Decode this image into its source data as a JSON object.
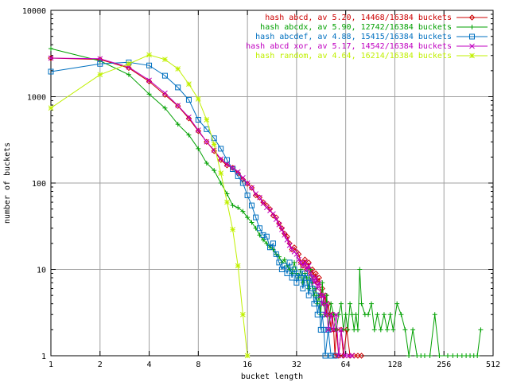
{
  "chart_data": {
    "type": "line",
    "xscale": "log2",
    "yscale": "log10",
    "xlim": [
      1,
      512
    ],
    "ylim": [
      1,
      10000
    ],
    "xticks": [
      "1",
      "2",
      "4",
      "8",
      "16",
      "32",
      "64",
      "128",
      "256",
      "512"
    ],
    "yticks": [
      "1",
      "10",
      "100",
      "1000",
      "10000"
    ],
    "xlabel": "bucket length",
    "ylabel": "number of buckets",
    "grid": true,
    "legend_position": "top-right",
    "series": [
      {
        "name": "hash abcd, av 5.20, 14468/16384 buckets",
        "color": "#cc0000",
        "marker": "diamond",
        "points": [
          [
            1,
            2800
          ],
          [
            2,
            2700
          ],
          [
            3,
            2150
          ],
          [
            4,
            1500
          ],
          [
            5,
            1050
          ],
          [
            6,
            780
          ],
          [
            7,
            560
          ],
          [
            8,
            400
          ],
          [
            9,
            300
          ],
          [
            10,
            235
          ],
          [
            11,
            185
          ],
          [
            12,
            160
          ],
          [
            13,
            150
          ],
          [
            14,
            130
          ],
          [
            15,
            110
          ],
          [
            16,
            98
          ],
          [
            17,
            88
          ],
          [
            18,
            72
          ],
          [
            19,
            68
          ],
          [
            20,
            60
          ],
          [
            21,
            55
          ],
          [
            22,
            50
          ],
          [
            23,
            42
          ],
          [
            24,
            40
          ],
          [
            25,
            34
          ],
          [
            26,
            30
          ],
          [
            27,
            26
          ],
          [
            28,
            24
          ],
          [
            29,
            20
          ],
          [
            30,
            17
          ],
          [
            31,
            18
          ],
          [
            32,
            16
          ],
          [
            33,
            15
          ],
          [
            34,
            12
          ],
          [
            35,
            11
          ],
          [
            36,
            13
          ],
          [
            37,
            10
          ],
          [
            38,
            12
          ],
          [
            39,
            9
          ],
          [
            40,
            10
          ],
          [
            41,
            8
          ],
          [
            42,
            9
          ],
          [
            43,
            7
          ],
          [
            44,
            8
          ],
          [
            45,
            5
          ],
          [
            46,
            6
          ],
          [
            47,
            4
          ],
          [
            48,
            5
          ],
          [
            49,
            3
          ],
          [
            50,
            4
          ],
          [
            51,
            3
          ],
          [
            52,
            2
          ],
          [
            53,
            3
          ],
          [
            54,
            2
          ],
          [
            55,
            1
          ],
          [
            56,
            2
          ],
          [
            58,
            1
          ],
          [
            60,
            2
          ],
          [
            62,
            1
          ],
          [
            65,
            2
          ],
          [
            68,
            1
          ],
          [
            72,
            1
          ],
          [
            76,
            1
          ],
          [
            80,
            1
          ]
        ]
      },
      {
        "name": "hash abcdx, av 5.90, 12742/16384 buckets",
        "color": "#00a000",
        "marker": "plus",
        "points": [
          [
            1,
            3600
          ],
          [
            2,
            2600
          ],
          [
            3,
            1800
          ],
          [
            4,
            1070
          ],
          [
            5,
            740
          ],
          [
            6,
            480
          ],
          [
            7,
            360
          ],
          [
            8,
            250
          ],
          [
            9,
            170
          ],
          [
            10,
            140
          ],
          [
            11,
            100
          ],
          [
            12,
            75
          ],
          [
            13,
            55
          ],
          [
            14,
            52
          ],
          [
            15,
            47
          ],
          [
            16,
            40
          ],
          [
            17,
            35
          ],
          [
            18,
            30
          ],
          [
            19,
            25
          ],
          [
            20,
            22
          ],
          [
            21,
            20
          ],
          [
            22,
            18
          ],
          [
            23,
            17
          ],
          [
            24,
            15
          ],
          [
            25,
            14
          ],
          [
            26,
            12
          ],
          [
            27,
            13
          ],
          [
            28,
            11
          ],
          [
            29,
            10
          ],
          [
            30,
            9
          ],
          [
            31,
            12
          ],
          [
            32,
            9
          ],
          [
            33,
            8
          ],
          [
            34,
            10
          ],
          [
            35,
            7
          ],
          [
            36,
            9
          ],
          [
            37,
            8
          ],
          [
            38,
            6
          ],
          [
            39,
            10
          ],
          [
            40,
            7
          ],
          [
            41,
            5
          ],
          [
            42,
            6
          ],
          [
            43,
            4
          ],
          [
            44,
            5
          ],
          [
            45,
            3
          ],
          [
            46,
            7
          ],
          [
            47,
            4
          ],
          [
            48,
            3
          ],
          [
            49,
            5
          ],
          [
            50,
            2
          ],
          [
            52,
            4
          ],
          [
            54,
            3
          ],
          [
            56,
            2
          ],
          [
            58,
            3
          ],
          [
            60,
            4
          ],
          [
            62,
            2
          ],
          [
            64,
            3
          ],
          [
            66,
            2
          ],
          [
            68,
            4
          ],
          [
            70,
            3
          ],
          [
            72,
            2
          ],
          [
            74,
            3
          ],
          [
            76,
            2
          ],
          [
            78,
            10
          ],
          [
            80,
            4
          ],
          [
            84,
            3
          ],
          [
            88,
            3
          ],
          [
            92,
            4
          ],
          [
            96,
            2
          ],
          [
            100,
            3
          ],
          [
            105,
            2
          ],
          [
            110,
            3
          ],
          [
            115,
            2
          ],
          [
            120,
            3
          ],
          [
            125,
            2
          ],
          [
            132,
            4
          ],
          [
            140,
            3
          ],
          [
            148,
            2
          ],
          [
            156,
            1
          ],
          [
            165,
            2
          ],
          [
            175,
            1
          ],
          [
            185,
            1
          ],
          [
            195,
            1
          ],
          [
            210,
            1
          ],
          [
            225,
            3
          ],
          [
            240,
            1
          ],
          [
            270,
            1
          ],
          [
            290,
            1
          ],
          [
            310,
            1
          ],
          [
            330,
            1
          ],
          [
            350,
            1
          ],
          [
            370,
            1
          ],
          [
            390,
            1
          ],
          [
            410,
            1
          ],
          [
            430,
            2
          ]
        ]
      },
      {
        "name": "hash abcdef, av 4.88, 15415/16384 buckets",
        "color": "#0070c0",
        "marker": "square",
        "points": [
          [
            1,
            1950
          ],
          [
            2,
            2400
          ],
          [
            3,
            2500
          ],
          [
            4,
            2300
          ],
          [
            5,
            1750
          ],
          [
            6,
            1280
          ],
          [
            7,
            920
          ],
          [
            8,
            540
          ],
          [
            9,
            420
          ],
          [
            10,
            330
          ],
          [
            11,
            250
          ],
          [
            12,
            185
          ],
          [
            13,
            145
          ],
          [
            14,
            120
          ],
          [
            15,
            100
          ],
          [
            16,
            72
          ],
          [
            17,
            55
          ],
          [
            18,
            40
          ],
          [
            19,
            30
          ],
          [
            20,
            25
          ],
          [
            21,
            24
          ],
          [
            22,
            18
          ],
          [
            23,
            20
          ],
          [
            24,
            15
          ],
          [
            25,
            12
          ],
          [
            26,
            10
          ],
          [
            27,
            11
          ],
          [
            28,
            9
          ],
          [
            29,
            12
          ],
          [
            30,
            8
          ],
          [
            31,
            10
          ],
          [
            32,
            7
          ],
          [
            33,
            9
          ],
          [
            34,
            8
          ],
          [
            35,
            6
          ],
          [
            36,
            9
          ],
          [
            37,
            7
          ],
          [
            38,
            5
          ],
          [
            39,
            8
          ],
          [
            40,
            6
          ],
          [
            41,
            4
          ],
          [
            42,
            5
          ],
          [
            43,
            3
          ],
          [
            44,
            4
          ],
          [
            45,
            2
          ],
          [
            46,
            3
          ],
          [
            47,
            2
          ],
          [
            48,
            1
          ],
          [
            50,
            2
          ],
          [
            52,
            1
          ],
          [
            55,
            1
          ]
        ]
      },
      {
        "name": "hash abcd xor, av 5.17, 14542/16384 buckets",
        "color": "#c000c0",
        "marker": "x",
        "points": [
          [
            1,
            2800
          ],
          [
            2,
            2750
          ],
          [
            3,
            2200
          ],
          [
            4,
            1550
          ],
          [
            5,
            1100
          ],
          [
            6,
            790
          ],
          [
            7,
            580
          ],
          [
            8,
            410
          ],
          [
            9,
            300
          ],
          [
            10,
            240
          ],
          [
            11,
            190
          ],
          [
            12,
            165
          ],
          [
            13,
            150
          ],
          [
            14,
            135
          ],
          [
            15,
            115
          ],
          [
            16,
            100
          ],
          [
            17,
            88
          ],
          [
            18,
            75
          ],
          [
            19,
            68
          ],
          [
            20,
            58
          ],
          [
            21,
            52
          ],
          [
            22,
            48
          ],
          [
            23,
            44
          ],
          [
            24,
            38
          ],
          [
            25,
            33
          ],
          [
            26,
            29
          ],
          [
            27,
            25
          ],
          [
            28,
            22
          ],
          [
            29,
            19
          ],
          [
            30,
            17
          ],
          [
            31,
            16
          ],
          [
            32,
            15
          ],
          [
            33,
            13
          ],
          [
            34,
            12
          ],
          [
            35,
            11
          ],
          [
            36,
            12
          ],
          [
            37,
            10
          ],
          [
            38,
            11
          ],
          [
            39,
            9
          ],
          [
            40,
            8
          ],
          [
            41,
            7
          ],
          [
            42,
            8
          ],
          [
            43,
            6
          ],
          [
            44,
            7
          ],
          [
            45,
            5
          ],
          [
            46,
            4
          ],
          [
            47,
            5
          ],
          [
            48,
            3
          ],
          [
            49,
            4
          ],
          [
            50,
            2
          ],
          [
            52,
            3
          ],
          [
            54,
            2
          ],
          [
            56,
            3
          ],
          [
            58,
            1
          ],
          [
            60,
            2
          ],
          [
            63,
            1
          ],
          [
            67,
            1
          ],
          [
            70,
            1
          ]
        ]
      },
      {
        "name": "hash random, av 4.64, 16214/16384 buckets",
        "color": "#c0f000",
        "marker": "star",
        "points": [
          [
            1,
            740
          ],
          [
            2,
            1800
          ],
          [
            3,
            2400
          ],
          [
            4,
            3050
          ],
          [
            5,
            2700
          ],
          [
            6,
            2100
          ],
          [
            7,
            1400
          ],
          [
            8,
            940
          ],
          [
            9,
            540
          ],
          [
            10,
            280
          ],
          [
            11,
            130
          ],
          [
            12,
            60
          ],
          [
            13,
            29
          ],
          [
            14,
            11
          ],
          [
            15,
            3
          ],
          [
            16,
            1
          ]
        ]
      }
    ]
  }
}
